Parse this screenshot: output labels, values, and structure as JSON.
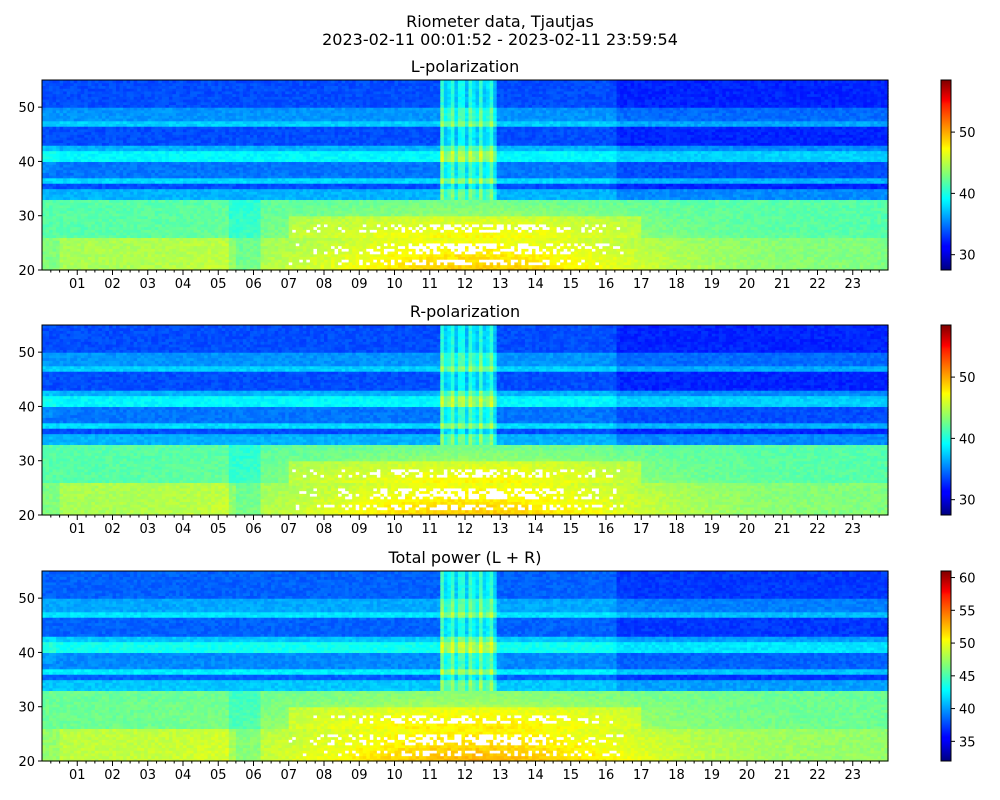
{
  "figure": {
    "title_line1": "Riometer data, Tjautjas",
    "title_line2": "2023-02-11 00:01:52 - 2023-02-11 23:59:54"
  },
  "colormap": "jet",
  "chart_data": [
    {
      "type": "heatmap",
      "title": "L-polarization",
      "x_ticks": [
        "01",
        "02",
        "03",
        "04",
        "05",
        "06",
        "07",
        "08",
        "09",
        "10",
        "11",
        "12",
        "13",
        "14",
        "15",
        "16",
        "17",
        "18",
        "19",
        "20",
        "21",
        "22",
        "23"
      ],
      "x_range_hours": [
        0,
        24
      ],
      "y_ticks": [
        20,
        30,
        40,
        50
      ],
      "ylim": [
        20,
        55
      ],
      "colorbar": {
        "ticks": [
          30,
          40,
          50
        ],
        "range": [
          27.5,
          58.5
        ]
      }
    },
    {
      "type": "heatmap",
      "title": "R-polarization",
      "x_ticks": [
        "01",
        "02",
        "03",
        "04",
        "05",
        "06",
        "07",
        "08",
        "09",
        "10",
        "11",
        "12",
        "13",
        "14",
        "15",
        "16",
        "17",
        "18",
        "19",
        "20",
        "21",
        "22",
        "23"
      ],
      "x_range_hours": [
        0,
        24
      ],
      "y_ticks": [
        20,
        30,
        40,
        50
      ],
      "ylim": [
        20,
        55
      ],
      "colorbar": {
        "ticks": [
          30,
          40,
          50
        ],
        "range": [
          27.5,
          58.5
        ]
      }
    },
    {
      "type": "heatmap",
      "title": "Total power (L + R)",
      "x_ticks": [
        "01",
        "02",
        "03",
        "04",
        "05",
        "06",
        "07",
        "08",
        "09",
        "10",
        "11",
        "12",
        "13",
        "14",
        "15",
        "16",
        "17",
        "18",
        "19",
        "20",
        "21",
        "22",
        "23"
      ],
      "x_range_hours": [
        0,
        24
      ],
      "y_ticks": [
        20,
        30,
        40,
        50
      ],
      "ylim": [
        20,
        55
      ],
      "colorbar": {
        "ticks": [
          35,
          40,
          45,
          50,
          55,
          60
        ],
        "range": [
          32,
          61
        ]
      }
    }
  ]
}
